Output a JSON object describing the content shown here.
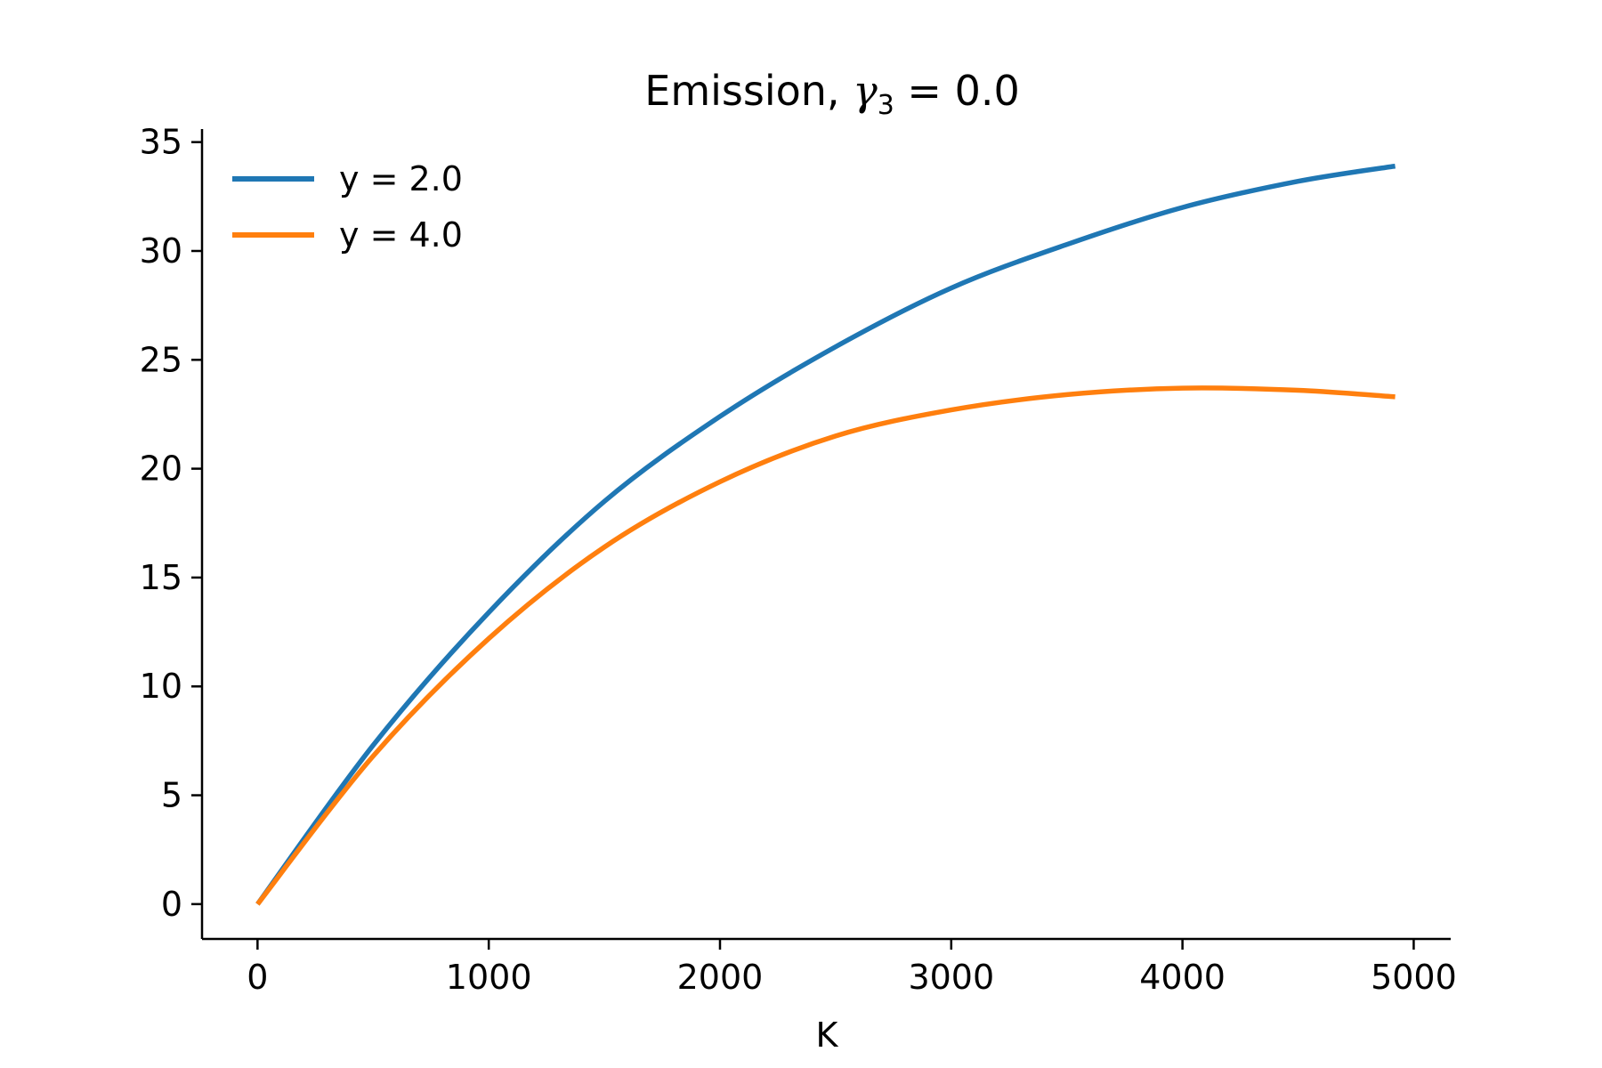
{
  "chart_data": {
    "type": "line",
    "title": "Emission, γ₃ = 0.0",
    "title_parts": {
      "main": "Emission, ",
      "symbol": "γ",
      "subscript": "3",
      "rest": " = 0.0"
    },
    "xlabel": "K",
    "ylabel": "",
    "xlim": [
      -240,
      5160
    ],
    "ylim": [
      -1.6,
      35.6
    ],
    "xticks": [
      0,
      1000,
      2000,
      3000,
      4000,
      5000
    ],
    "xtick_labels": [
      "0",
      "1000",
      "2000",
      "3000",
      "4000",
      "5000"
    ],
    "yticks": [
      0,
      5,
      10,
      15,
      20,
      25,
      30,
      35
    ],
    "ytick_labels": [
      "0",
      "5",
      "10",
      "15",
      "20",
      "25",
      "30",
      "35"
    ],
    "grid": false,
    "legend_position": "top-left",
    "x": [
      0,
      500,
      1000,
      1500,
      2000,
      2500,
      3000,
      3500,
      4000,
      4500,
      4920
    ],
    "series": [
      {
        "name": "y = 2.0",
        "color": "#1f77b4",
        "values": [
          0,
          7.3,
          13.4,
          18.5,
          22.4,
          25.6,
          28.3,
          30.3,
          32.0,
          33.2,
          33.9
        ]
      },
      {
        "name": "y = 4.0",
        "color": "#ff7f0e",
        "values": [
          0,
          6.8,
          12.2,
          16.4,
          19.4,
          21.5,
          22.7,
          23.4,
          23.7,
          23.6,
          23.3
        ]
      }
    ]
  }
}
